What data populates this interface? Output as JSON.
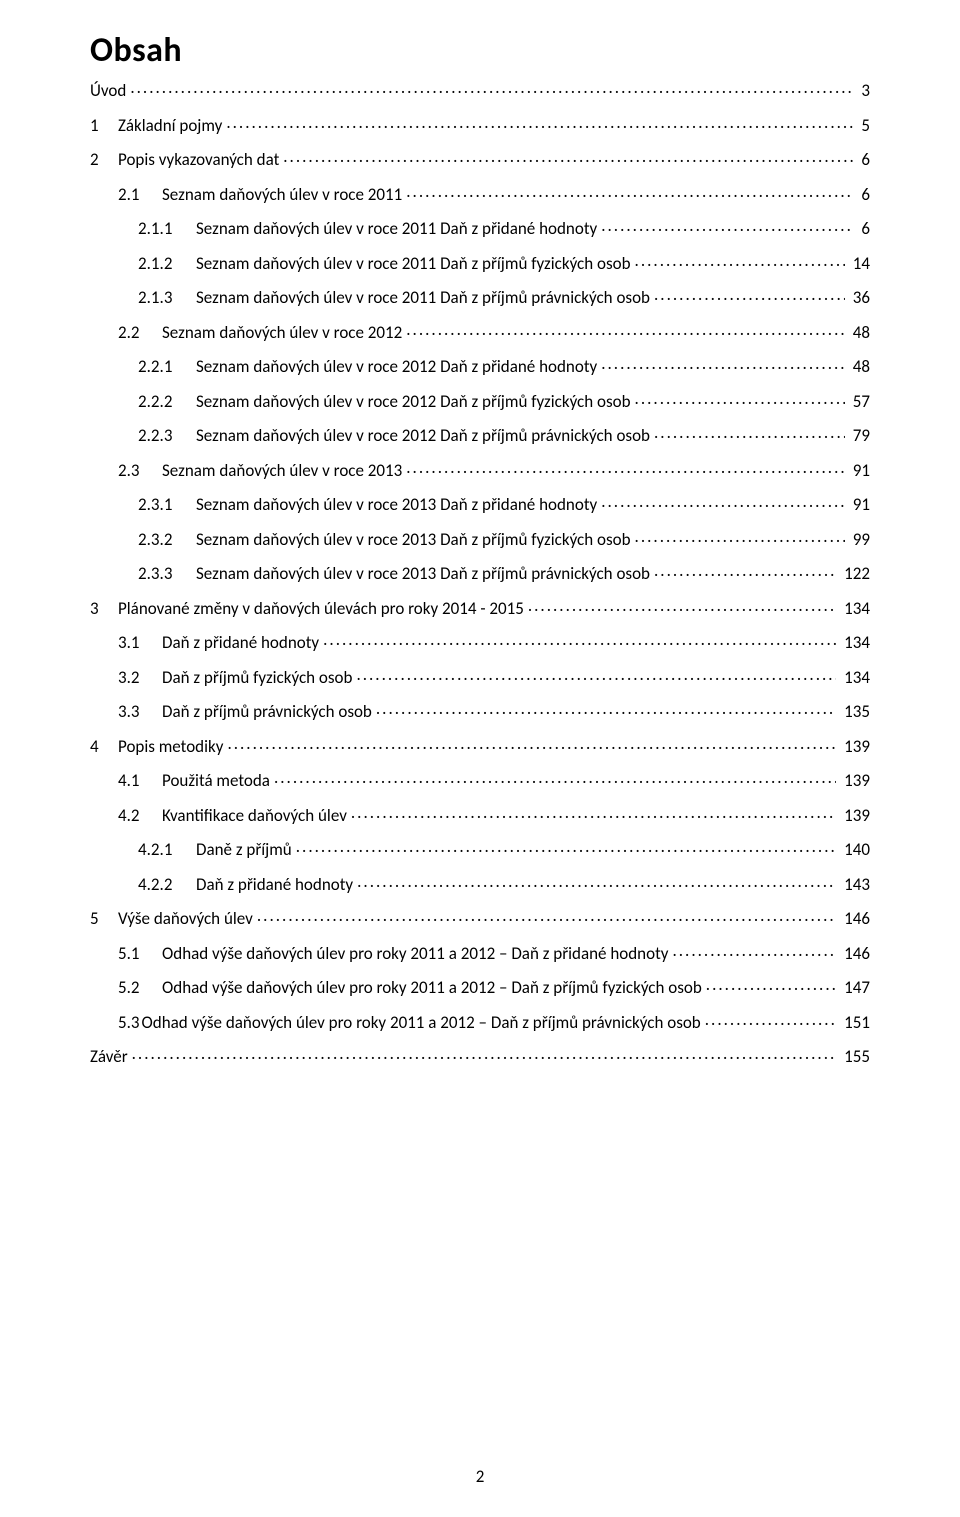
{
  "title": "Obsah",
  "page_number": "2",
  "colors": {
    "background": "#ffffff",
    "text": "#000000"
  },
  "typography": {
    "title_fontsize_pt": 26,
    "title_weight": "bold",
    "entry_fontsize_pt": 13,
    "font_family": "Calibri"
  },
  "entries": [
    {
      "indent": 0,
      "num": "",
      "text": "Úvod",
      "page": "3"
    },
    {
      "indent": 1,
      "num": "1",
      "text": "Základní pojmy",
      "page": "5"
    },
    {
      "indent": 1,
      "num": "2",
      "text": "Popis vykazovaných dat",
      "page": "6"
    },
    {
      "indent": 2,
      "num": "2.1",
      "text": "Seznam daňových úlev v roce 2011",
      "page": "6"
    },
    {
      "indent": 3,
      "num": "2.1.1",
      "text": "Seznam daňových úlev v roce 2011 Daň z přidané hodnoty",
      "page": "6"
    },
    {
      "indent": 3,
      "num": "2.1.2",
      "text": "Seznam daňových úlev v roce 2011 Daň z příjmů fyzických osob",
      "page": "14"
    },
    {
      "indent": 3,
      "num": "2.1.3",
      "text": "Seznam daňových úlev v roce 2011 Daň z příjmů právnických osob",
      "page": "36"
    },
    {
      "indent": 2,
      "num": "2.2",
      "text": "Seznam daňových úlev v roce 2012",
      "page": "48"
    },
    {
      "indent": 3,
      "num": "2.2.1",
      "text": "Seznam daňových úlev v roce 2012 Daň z přidané hodnoty",
      "page": "48"
    },
    {
      "indent": 3,
      "num": "2.2.2",
      "text": "Seznam daňových úlev v roce 2012 Daň z příjmů fyzických osob",
      "page": "57"
    },
    {
      "indent": 3,
      "num": "2.2.3",
      "text": "Seznam daňových úlev v roce 2012 Daň z příjmů právnických osob",
      "page": "79"
    },
    {
      "indent": 2,
      "num": "2.3",
      "text": "Seznam daňových úlev v roce 2013",
      "page": "91"
    },
    {
      "indent": 3,
      "num": "2.3.1",
      "text": "Seznam daňových úlev v roce 2013 Daň z přidané hodnoty",
      "page": "91"
    },
    {
      "indent": 3,
      "num": "2.3.2",
      "text": "Seznam daňových úlev v roce 2013 Daň z příjmů fyzických osob",
      "page": "99"
    },
    {
      "indent": 3,
      "num": "2.3.3",
      "text": "Seznam daňových úlev v roce 2013 Daň z příjmů právnických osob",
      "page": "122"
    },
    {
      "indent": 1,
      "num": "3",
      "text": "Plánované změny v daňových úlevách pro roky 2014 - 2015",
      "page": "134"
    },
    {
      "indent": 2,
      "num": "3.1",
      "text": "Daň z přidané hodnoty",
      "page": "134"
    },
    {
      "indent": 2,
      "num": "3.2",
      "text": "Daň z příjmů fyzických osob",
      "page": "134"
    },
    {
      "indent": 2,
      "num": "3.3",
      "text": "Daň z příjmů právnických osob",
      "page": "135"
    },
    {
      "indent": 1,
      "num": "4",
      "text": "Popis metodiky",
      "page": "139"
    },
    {
      "indent": 2,
      "num": "4.1",
      "text": "Použitá metoda",
      "page": "139"
    },
    {
      "indent": 2,
      "num": "4.2",
      "text": "Kvantifikace daňových úlev",
      "page": "139"
    },
    {
      "indent": 3,
      "num": "4.2.1",
      "text": "Daně z příjmů",
      "page": "140"
    },
    {
      "indent": 3,
      "num": "4.2.2",
      "text": "Daň z přidané hodnoty",
      "page": "143"
    },
    {
      "indent": 1,
      "num": "5",
      "text": "Výše daňových úlev",
      "page": "146"
    },
    {
      "indent": 2,
      "num": "5.1",
      "text": "Odhad výše daňových úlev pro roky 2011 a 2012 – Daň z přidané hodnoty",
      "page": "146"
    },
    {
      "indent": 2,
      "num": "5.2",
      "text": "Odhad výše daňových úlev pro roky 2011 a 2012 – Daň z příjmů fyzických osob",
      "page": "147"
    },
    {
      "indent": 2,
      "num": "5.3",
      "text": "Odhad výše daňových úlev pro roky 2011 a 2012 – Daň z příjmů právnických osob",
      "page": "151",
      "no_num_gap": true
    },
    {
      "indent": 0,
      "num": "",
      "text": "Závěr",
      "page": "155"
    }
  ]
}
